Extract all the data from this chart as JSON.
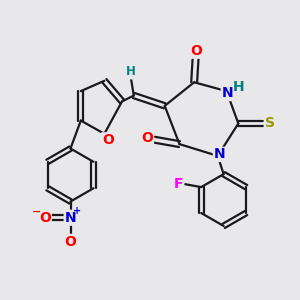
{
  "background_color": "#e8e8eb",
  "line_color": "#1a1a1a",
  "bond_width": 1.6,
  "atom_colors": {
    "O": "#ff0000",
    "N": "#0000cc",
    "S": "#999900",
    "F": "#ff00ff",
    "H": "#008080",
    "C": "#1a1a1a"
  },
  "font_size_atom": 10,
  "font_size_small": 8.5
}
